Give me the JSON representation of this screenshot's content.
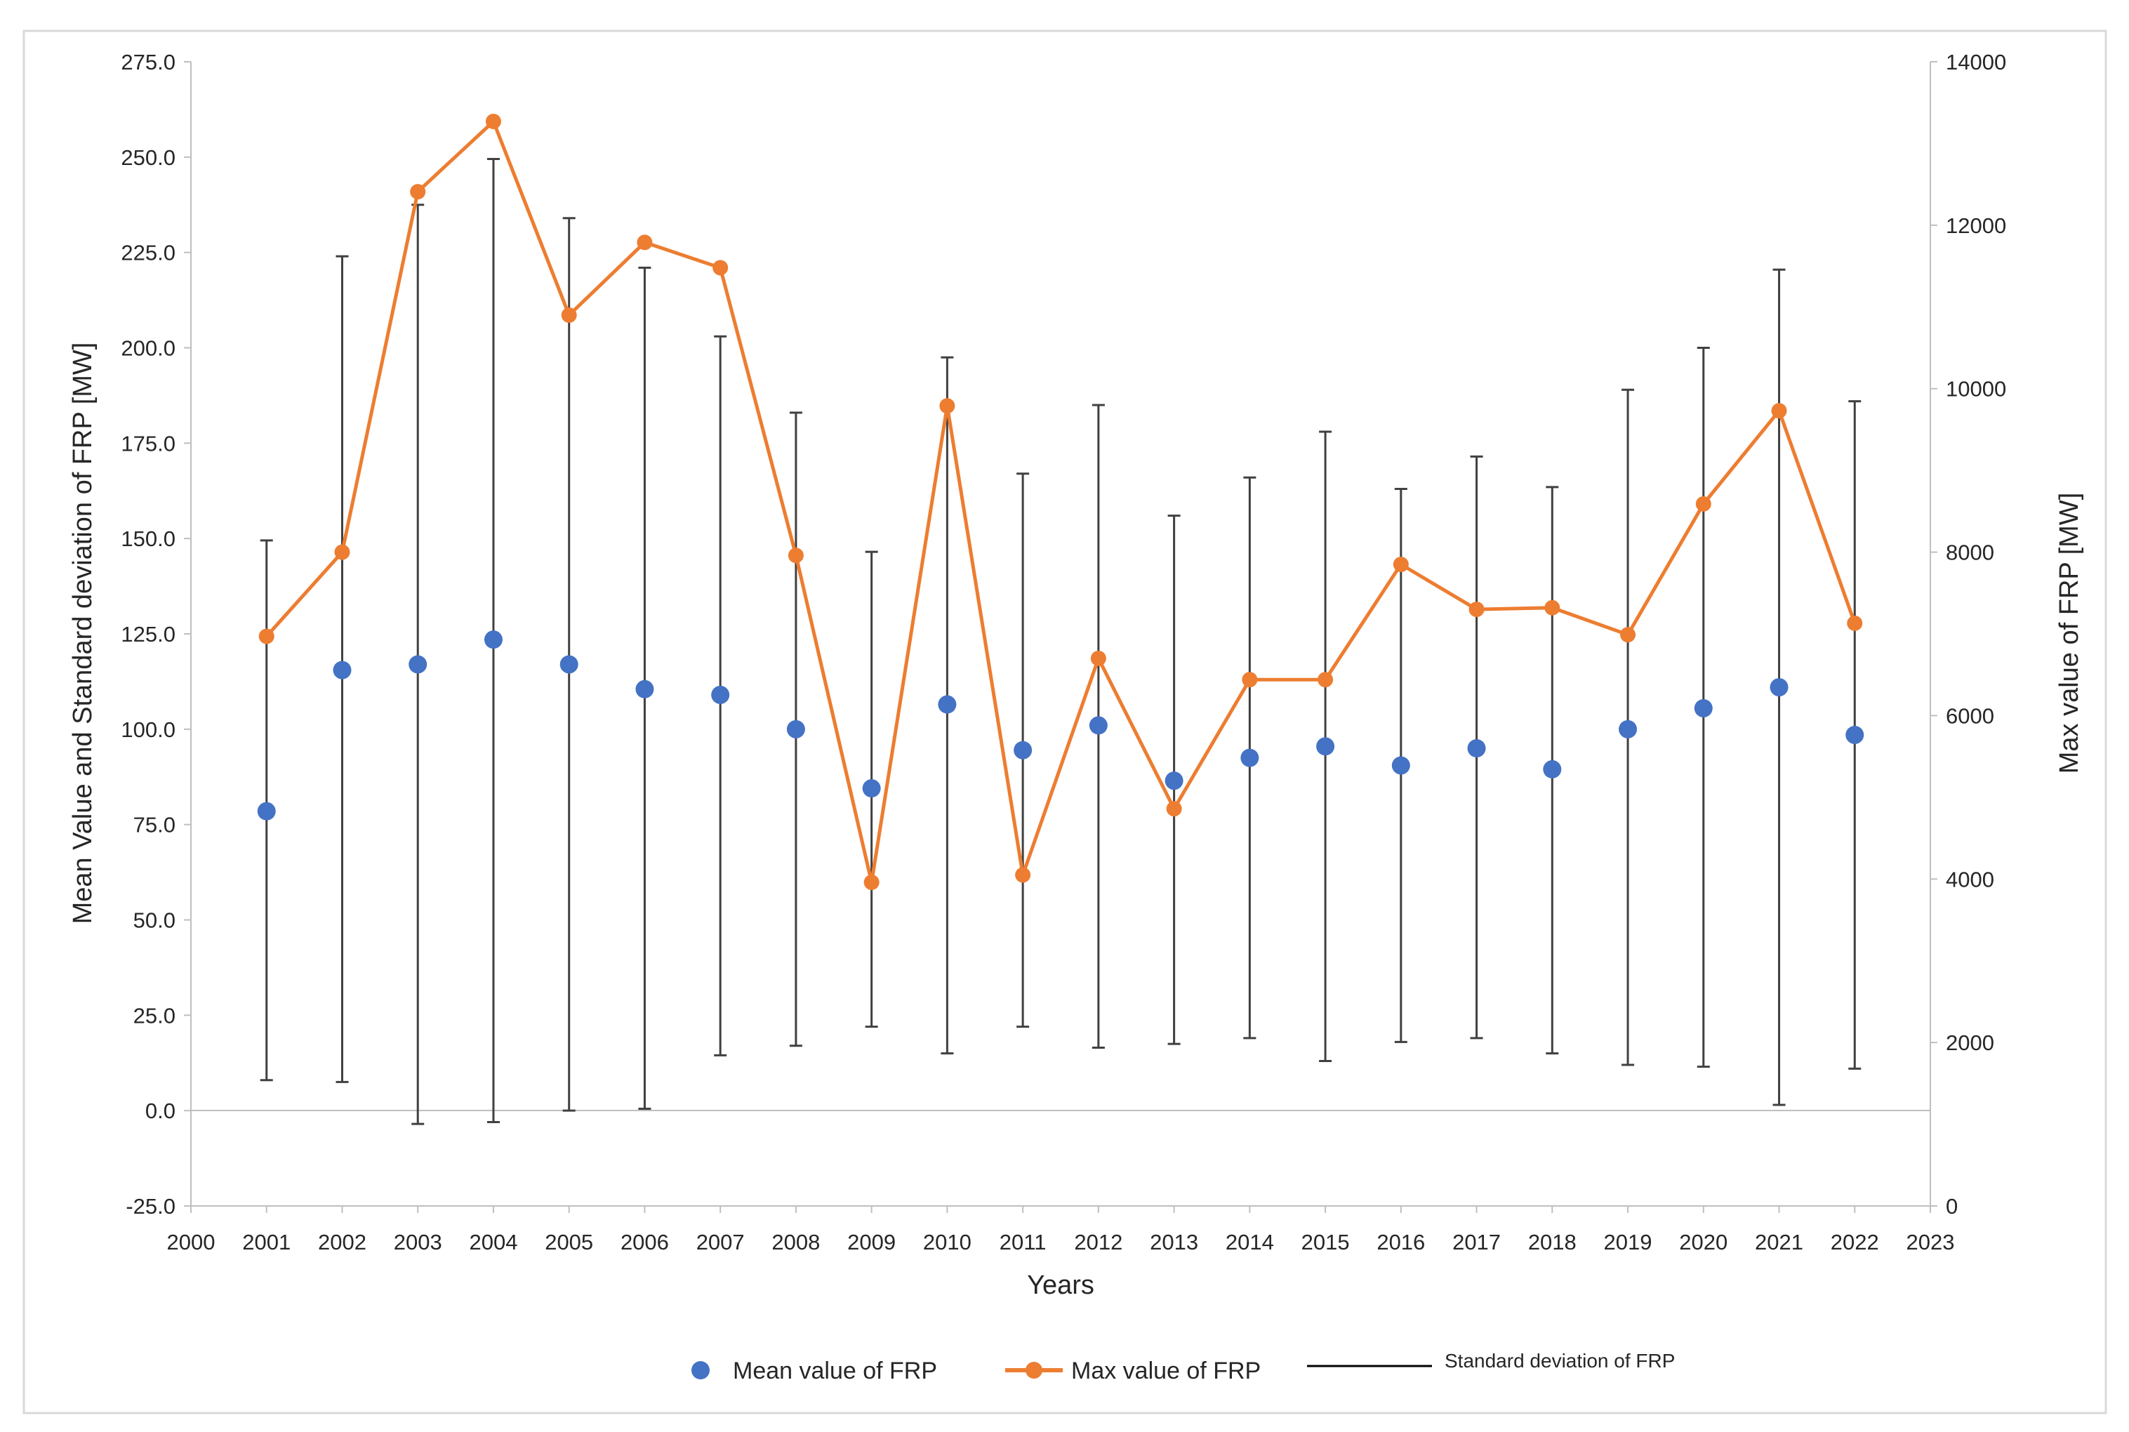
{
  "chart_data": {
    "type": "line",
    "title": "",
    "xlabel": "Years",
    "ylabel_left": "Mean Value and Standard deviation of FRP [MW]",
    "ylabel_right": "Max value of FRP [MW]",
    "xlim": [
      2000,
      2023
    ],
    "ylim_left": [
      -25,
      275
    ],
    "ylim_right": [
      0,
      14000
    ],
    "x_ticks": [
      "2000",
      "2001",
      "2002",
      "2003",
      "2004",
      "2005",
      "2006",
      "2007",
      "2008",
      "2009",
      "2010",
      "2011",
      "2012",
      "2013",
      "2014",
      "2015",
      "2016",
      "2017",
      "2018",
      "2019",
      "2020",
      "2021",
      "2022",
      "2023"
    ],
    "y_ticks_left": [
      "-25.0",
      "0.0",
      "25.0",
      "50.0",
      "75.0",
      "100.0",
      "125.0",
      "150.0",
      "175.0",
      "200.0",
      "225.0",
      "250.0",
      "275.0"
    ],
    "y_ticks_right": [
      "0",
      "2000",
      "4000",
      "6000",
      "8000",
      "10000",
      "12000",
      "14000"
    ],
    "grid": false,
    "legend_position": "bottom",
    "x": [
      2001,
      2002,
      2003,
      2004,
      2005,
      2006,
      2007,
      2008,
      2009,
      2010,
      2011,
      2012,
      2013,
      2014,
      2015,
      2016,
      2017,
      2018,
      2019,
      2020,
      2021,
      2022
    ],
    "series": [
      {
        "name": "Mean value of FRP",
        "axis": "left",
        "style": "markers",
        "color": "#4472C4",
        "values": [
          78.5,
          115.5,
          117,
          123.5,
          117,
          110.5,
          109,
          100,
          84.5,
          106.5,
          94.5,
          101,
          86.5,
          92.5,
          95.5,
          90.5,
          95,
          89.5,
          100,
          105.5,
          111,
          98.5
        ]
      },
      {
        "name": "Max value of FRP",
        "axis": "right",
        "style": "line-markers",
        "color": "#ED7D31",
        "values": [
          6970,
          8000,
          12410,
          13270,
          10900,
          11790,
          11480,
          7960,
          3960,
          9790,
          4050,
          6700,
          4860,
          6440,
          6440,
          7850,
          7300,
          7320,
          6990,
          8590,
          9730,
          7130
        ]
      },
      {
        "name": "Standard deviation of FRP",
        "axis": "left",
        "style": "error-bars",
        "color": "#404040",
        "low": [
          8,
          7.5,
          -3.5,
          -3,
          0,
          0.5,
          14.5,
          17,
          22,
          15,
          22,
          16.5,
          17.5,
          19,
          13,
          18,
          19,
          15,
          12,
          11.5,
          1.5,
          11
        ],
        "high": [
          149.5,
          224,
          237.5,
          249.5,
          234,
          221,
          203,
          183,
          146.5,
          197.5,
          167,
          185,
          156,
          166,
          178,
          163,
          171.5,
          163.5,
          189,
          200,
          220.5,
          186
        ]
      }
    ]
  }
}
